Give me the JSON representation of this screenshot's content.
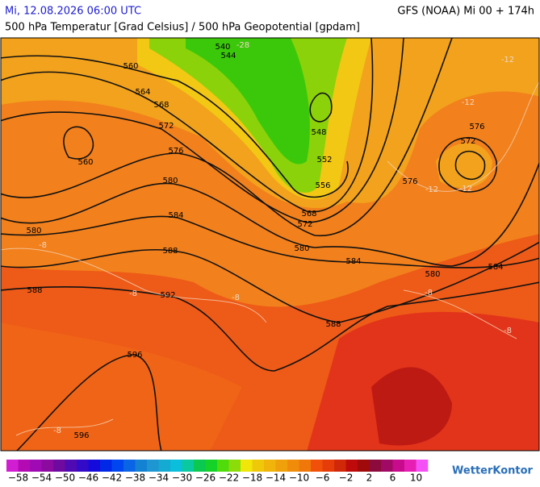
{
  "header": {
    "left": "Mi, 12.08.2026 06:00 UTC",
    "right": "GFS (NOAA) Mi 00 + 174h",
    "title": "500 hPa Temperatur [Grad Celsius] / 500 hPa Geopotential [gpdam]"
  },
  "map": {
    "geopotential_labels": [
      540,
      544,
      560,
      564,
      568,
      572,
      560,
      576,
      580,
      584,
      580,
      588,
      588,
      592,
      596,
      596,
      548,
      552,
      556,
      568,
      572,
      580,
      584,
      576,
      580,
      584,
      588,
      576,
      572
    ],
    "temperature_labels": [
      "-28",
      "-12",
      "-12",
      "-12",
      "-12",
      "-8",
      "-8",
      "-8",
      "-8",
      "-8",
      "-8"
    ]
  },
  "colorbar": {
    "colors": [
      "#d21ed2",
      "#b40ab4",
      "#a00ab4",
      "#8c0aa0",
      "#6e0aa0",
      "#500ab4",
      "#320ac8",
      "#140adc",
      "#0028e6",
      "#0046f0",
      "#0a64e6",
      "#1482d2",
      "#1e96d2",
      "#14aad2",
      "#0abedc",
      "#0ac8a0",
      "#0ac850",
      "#14d228",
      "#50dc0a",
      "#8cdc0a",
      "#f0e60a",
      "#f0c80a",
      "#f0b40a",
      "#f0a00a",
      "#f08c0a",
      "#f0780a",
      "#f0500a",
      "#e63c0a",
      "#d2280a",
      "#be0a0a",
      "#a00a0a",
      "#8c0a3c",
      "#a00a64",
      "#c80a8c",
      "#e61eb4",
      "#f550f5"
    ],
    "labels": [
      "−58",
      "−54",
      "−50",
      "−46",
      "−42",
      "−38",
      "−34",
      "−30",
      "−26",
      "−22",
      "−18",
      "−14",
      "−10",
      "−6",
      "−2",
      "2",
      "6",
      "10"
    ]
  },
  "logo": "WetterKontor"
}
